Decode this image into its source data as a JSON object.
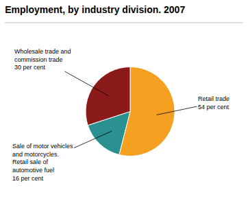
{
  "chart_data": {
    "type": "pie",
    "title": "Employment, by industry division. 2007",
    "categories": [
      "Retail trade",
      "Sale of motor vehicles\nand motorcycles.\nRetail sale of\nautomotive fuel",
      "Wholesale trade and\ncommission trade"
    ],
    "values": [
      54,
      16,
      30
    ],
    "value_labels": [
      "54 per cent",
      "16 per cent",
      "30 per cent"
    ],
    "data_labels": true,
    "colors": [
      "#F5A020",
      "#2A9090",
      "#8B1A1A"
    ]
  }
}
